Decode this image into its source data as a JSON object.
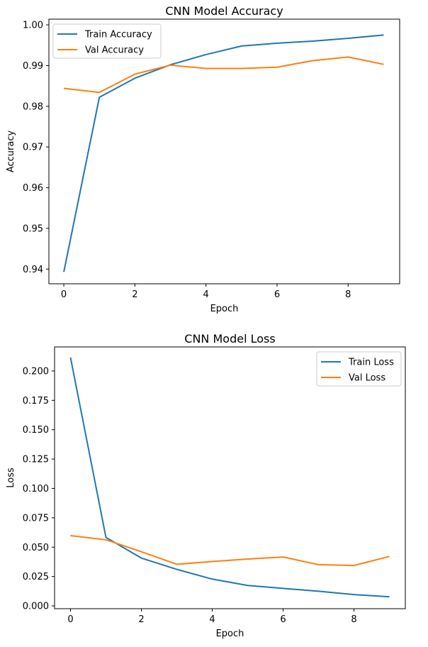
{
  "chart_data": [
    {
      "type": "line",
      "title": "CNN Model Accuracy",
      "xlabel": "Epoch",
      "ylabel": "Accuracy",
      "x": [
        0,
        1,
        2,
        3,
        4,
        5,
        6,
        7,
        8,
        9
      ],
      "xlim": [
        -0.42,
        9.45
      ],
      "ylim": [
        0.9364,
        1.0014
      ],
      "xticks": [
        0,
        2,
        4,
        6,
        8
      ],
      "yticks": [
        0.94,
        0.95,
        0.96,
        0.97,
        0.98,
        0.99,
        1.0
      ],
      "ytick_labels": [
        "0.94",
        "0.95",
        "0.96",
        "0.97",
        "0.98",
        "0.99",
        "1.00"
      ],
      "legend": "top-left",
      "grid": false,
      "series": [
        {
          "name": "Train Accuracy",
          "color": "#1f77b4",
          "values": [
            0.9393,
            0.9822,
            0.9869,
            0.9902,
            0.9927,
            0.9948,
            0.9955,
            0.996,
            0.9967,
            0.9975
          ]
        },
        {
          "name": "Val Accuracy",
          "color": "#ff7f0e",
          "values": [
            0.9844,
            0.9834,
            0.9879,
            0.9901,
            0.9893,
            0.9893,
            0.9896,
            0.9912,
            0.9921,
            0.9903
          ]
        }
      ]
    },
    {
      "type": "line",
      "title": "CNN Model Loss",
      "xlabel": "Epoch",
      "ylabel": "Loss",
      "x": [
        0,
        1,
        2,
        3,
        4,
        5,
        6,
        7,
        8,
        9
      ],
      "xlim": [
        -0.45,
        9.45
      ],
      "ylim": [
        -0.0024,
        0.2205
      ],
      "xticks": [
        0,
        2,
        4,
        6,
        8
      ],
      "yticks": [
        0.0,
        0.025,
        0.05,
        0.075,
        0.1,
        0.125,
        0.15,
        0.175,
        0.2
      ],
      "ytick_labels": [
        "0.000",
        "0.025",
        "0.050",
        "0.075",
        "0.100",
        "0.125",
        "0.150",
        "0.175",
        "0.200"
      ],
      "legend": "top-right",
      "grid": false,
      "series": [
        {
          "name": "Train Loss",
          "color": "#1f77b4",
          "values": [
            0.2115,
            0.0583,
            0.0407,
            0.0311,
            0.0228,
            0.0174,
            0.0149,
            0.0125,
            0.0096,
            0.0077
          ]
        },
        {
          "name": "Val Loss",
          "color": "#ff7f0e",
          "values": [
            0.0598,
            0.0563,
            0.0461,
            0.0354,
            0.0378,
            0.0399,
            0.0416,
            0.0351,
            0.0344,
            0.0421
          ]
        }
      ]
    }
  ]
}
